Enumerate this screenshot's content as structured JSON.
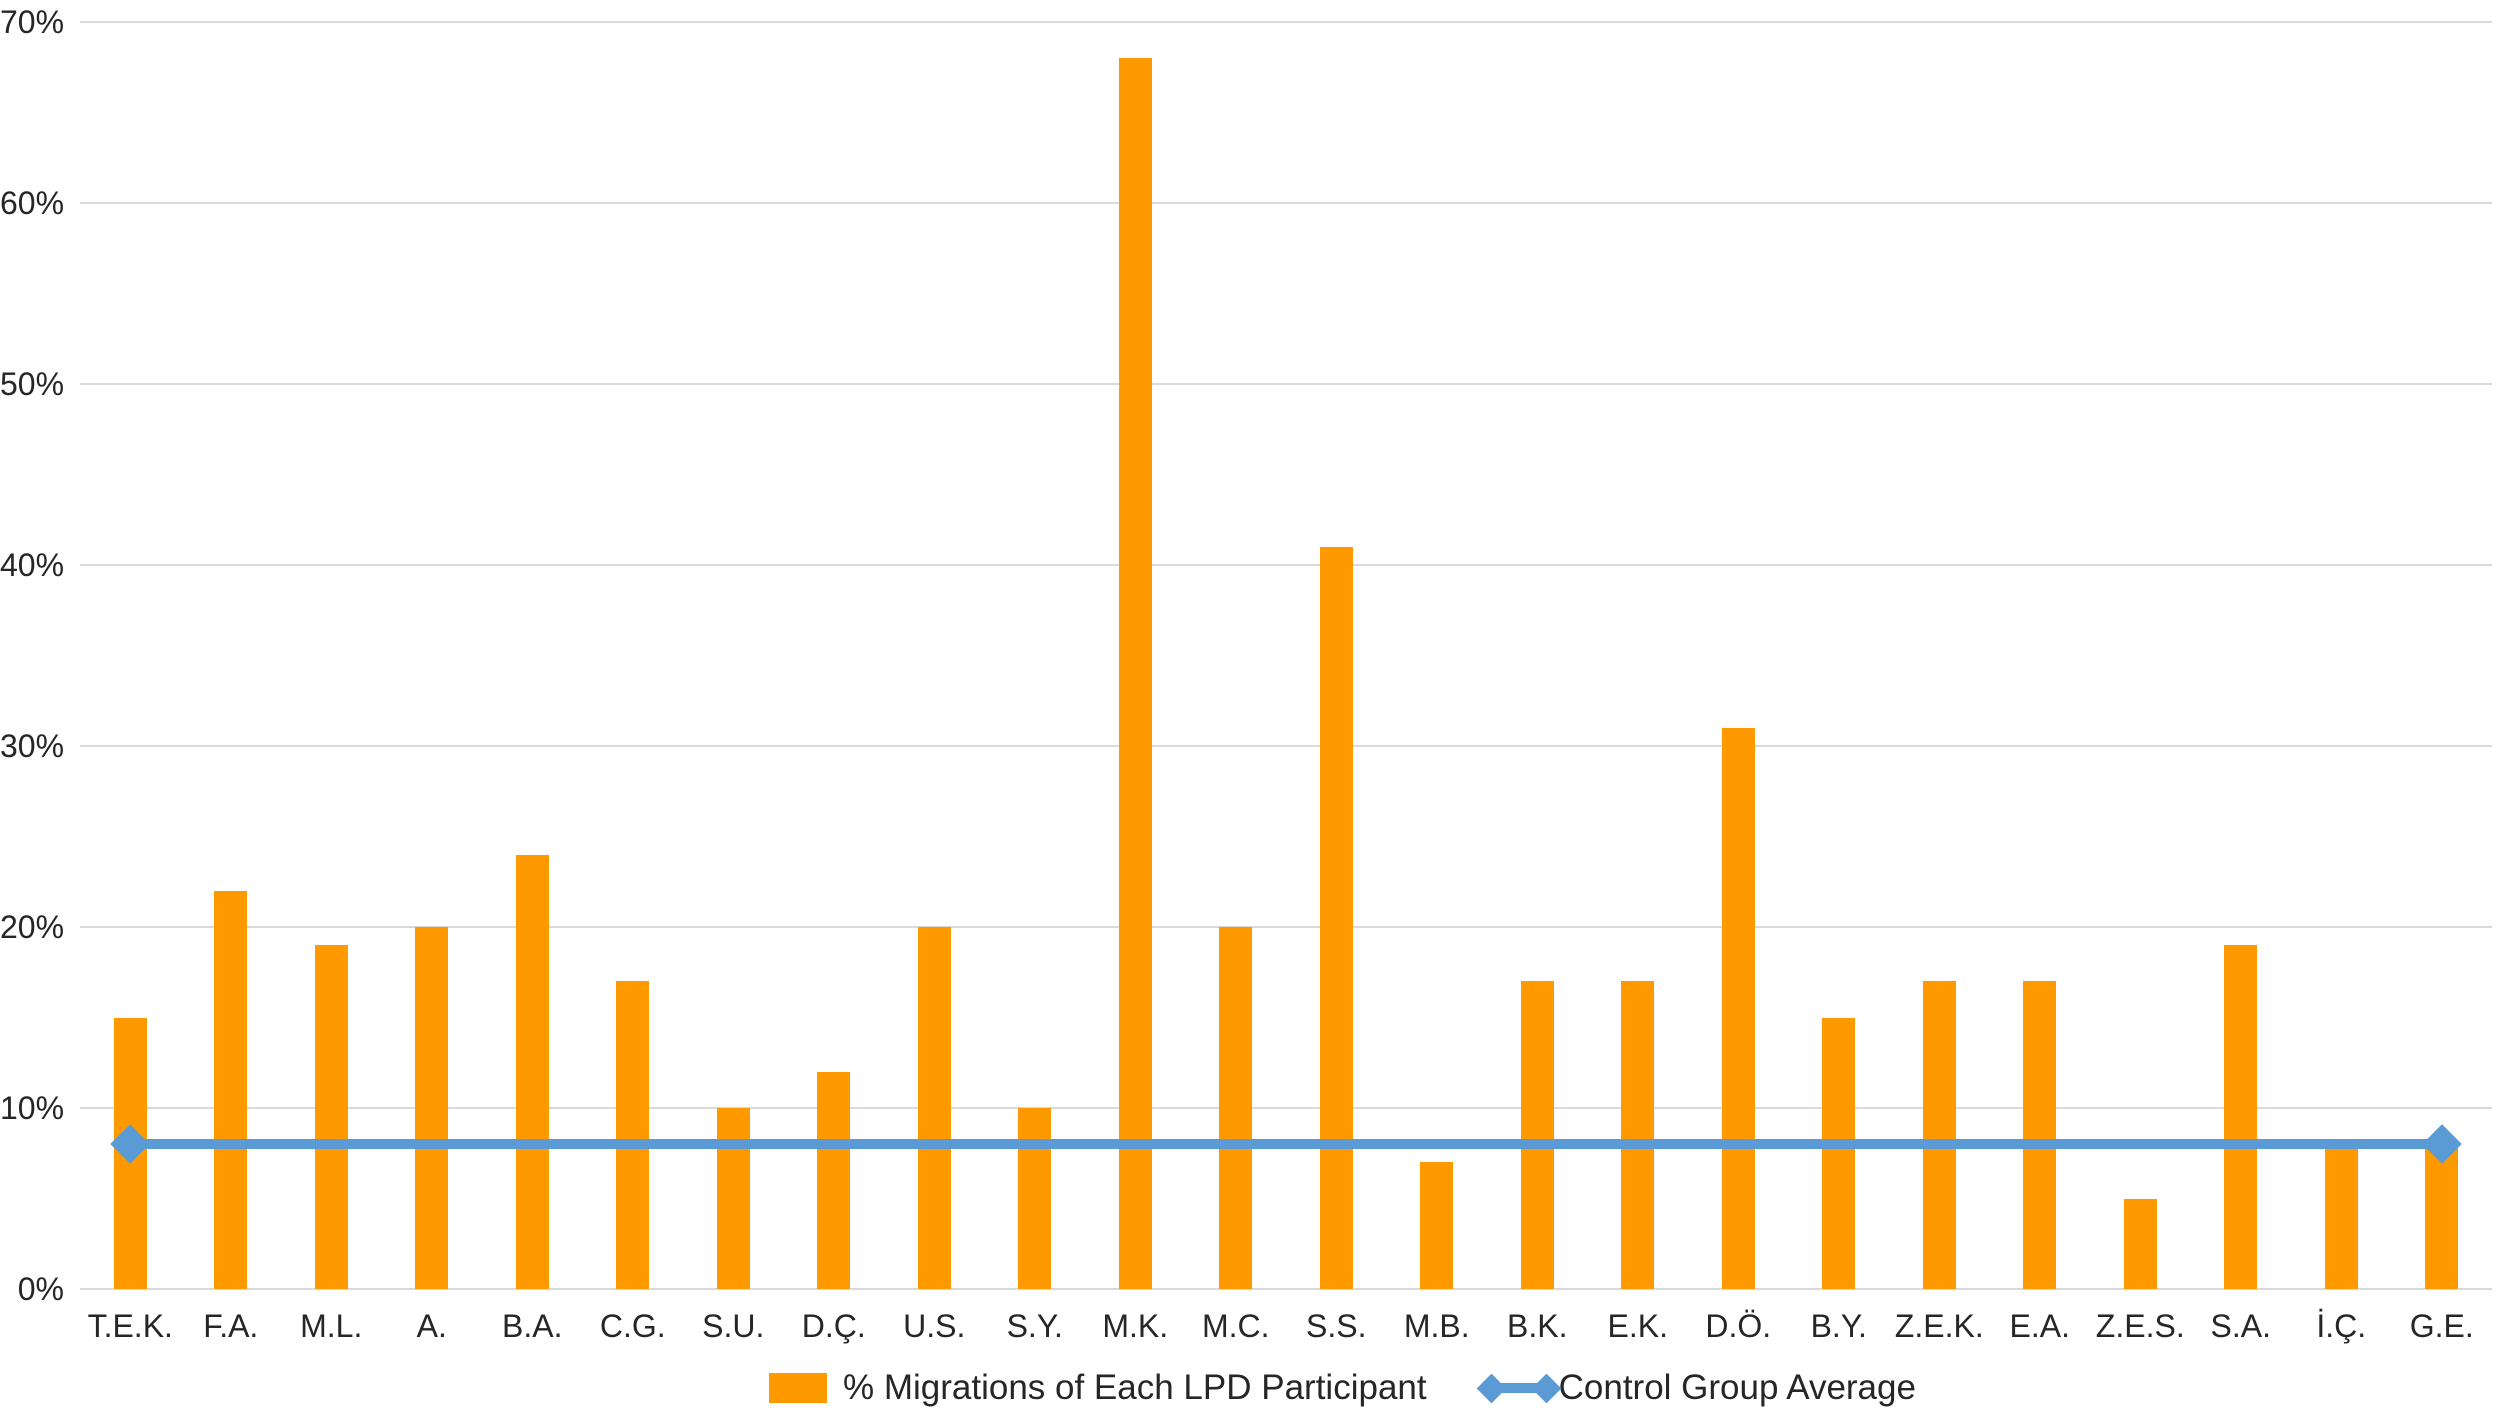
{
  "chart_data": {
    "type": "bar",
    "title": "",
    "categories": [
      "T.E.K.",
      "F.A.",
      "M.L.",
      "A.",
      "B.A.",
      "C.G.",
      "S.U.",
      "D.Ç.",
      "U.S.",
      "S.Y.",
      "M.K.",
      "M.C.",
      "S.S.",
      "M.B.",
      "B.K.",
      "E.K.",
      "D.Ö.",
      "B.Y.",
      "Z.E.K.",
      "E.A.",
      "Z.E.S.",
      "S.A.",
      "İ.Ç.",
      "G.E."
    ],
    "series": [
      {
        "name": "% Migrations of Each LPD Participant",
        "type": "bar",
        "unit": "%",
        "values": [
          15,
          22,
          19,
          20,
          24,
          17,
          10,
          12,
          20,
          10,
          68,
          20,
          41,
          7,
          17,
          17,
          31,
          15,
          17,
          17,
          5,
          19,
          8,
          8
        ]
      },
      {
        "name": "Control Group Average",
        "type": "line",
        "unit": "%",
        "constant_value": 8,
        "markers": "diamond-at-endpoints"
      }
    ],
    "xlabel": "",
    "ylabel": "",
    "ylim": [
      0,
      70
    ],
    "ytick_step": 10,
    "ytick_labels": [
      "0%",
      "10%",
      "20%",
      "30%",
      "40%",
      "50%",
      "60%",
      "70%"
    ],
    "grid": true,
    "legend_position": "bottom"
  },
  "legend": {
    "bar_label": "% Migrations of Each LPD Participant",
    "line_label": "Control Group Average"
  },
  "colors": {
    "bar": "#FF9900",
    "line": "#5B9BD5",
    "gridline": "#D9D9D9",
    "text": "#262626",
    "background": "#FFFFFF"
  }
}
